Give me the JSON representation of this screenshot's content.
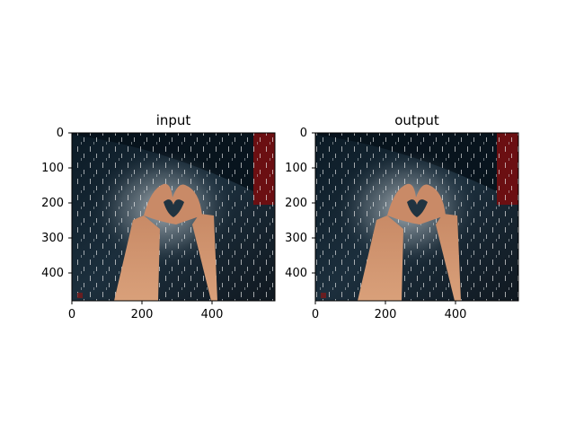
{
  "figure": {
    "panels": [
      {
        "title": "input",
        "yticks": [
          "0",
          "100",
          "200",
          "300",
          "400"
        ],
        "xticks": [
          "0",
          "200",
          "400"
        ]
      },
      {
        "title": "output",
        "yticks": [
          "0",
          "100",
          "200",
          "300",
          "400"
        ],
        "xticks": [
          "0",
          "200",
          "400"
        ]
      }
    ]
  }
}
